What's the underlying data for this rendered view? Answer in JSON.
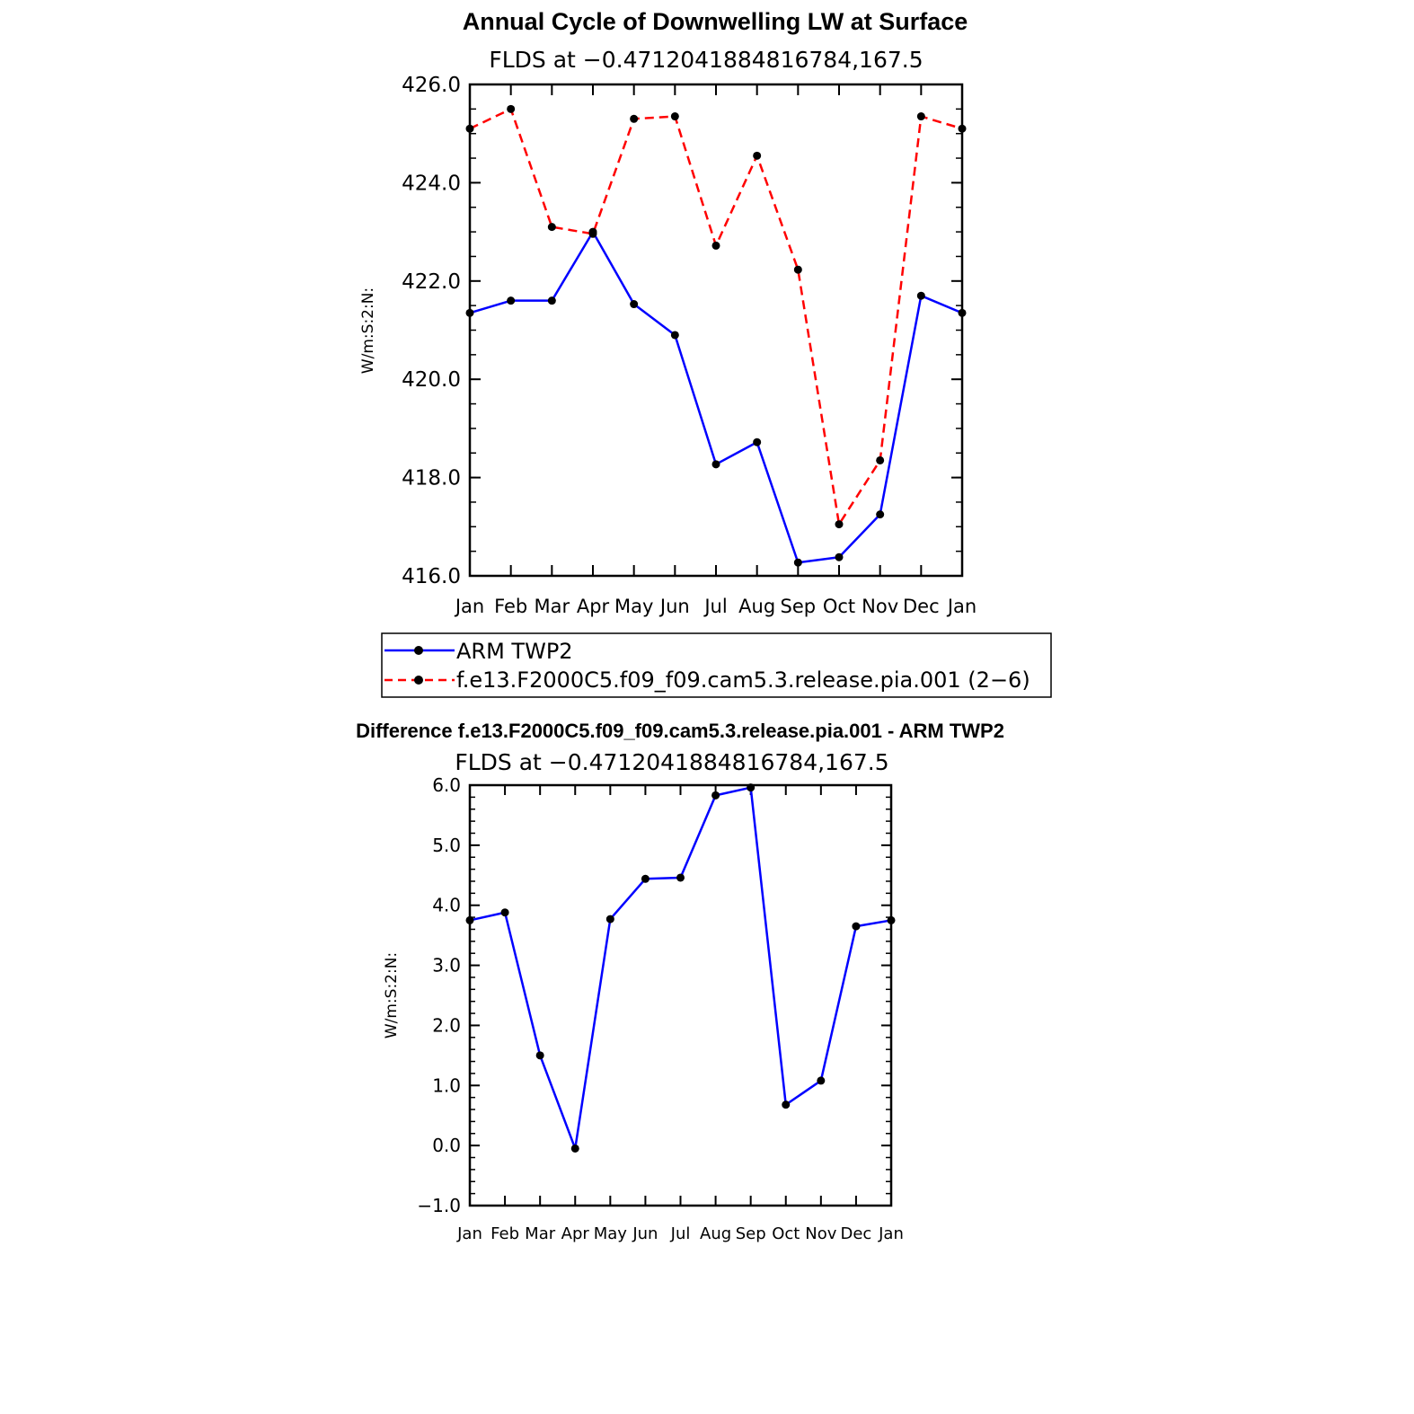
{
  "chart_data": [
    {
      "type": "line",
      "title": "Annual Cycle of Downwelling LW at Surface",
      "subtitle": "FLDS at −0.4712041884816784,167.5",
      "xlabel": "",
      "ylabel": "W/m:S:2:N:",
      "categories": [
        "Jan",
        "Feb",
        "Mar",
        "Apr",
        "May",
        "Jun",
        "Jul",
        "Aug",
        "Sep",
        "Oct",
        "Nov",
        "Dec",
        "Jan"
      ],
      "ylim": [
        416.0,
        426.0
      ],
      "yticks": [
        "416.0",
        "418.0",
        "420.0",
        "422.0",
        "424.0",
        "426.0"
      ],
      "grid": false,
      "legend_position": "bottom",
      "series": [
        {
          "name": "ARM TWP2",
          "color": "#0000ff",
          "style": "solid",
          "values": [
            421.35,
            421.6,
            421.6,
            423.0,
            421.53,
            420.9,
            418.27,
            418.72,
            416.27,
            416.38,
            417.25,
            421.7,
            421.35
          ]
        },
        {
          "name": "f.e13.F2000C5.f09_f09.cam5.3.release.pia.001 (2−6)",
          "color": "#ff0000",
          "style": "dashed",
          "values": [
            425.1,
            425.5,
            423.1,
            422.96,
            425.3,
            425.35,
            422.72,
            424.55,
            422.23,
            417.05,
            418.35,
            425.35,
            425.1
          ]
        }
      ]
    },
    {
      "type": "line",
      "title": "Difference f.e13.F2000C5.f09_f09.cam5.3.release.pia.001 - ARM TWP2",
      "subtitle": "FLDS at −0.4712041884816784,167.5",
      "xlabel": "",
      "ylabel": "W/m:S:2:N:",
      "categories": [
        "Jan",
        "Feb",
        "Mar",
        "Apr",
        "May",
        "Jun",
        "Jul",
        "Aug",
        "Sep",
        "Oct",
        "Nov",
        "Dec",
        "Jan"
      ],
      "ylim": [
        -1.0,
        6.0
      ],
      "yticks": [
        "−1.0",
        "0.0",
        "1.0",
        "2.0",
        "3.0",
        "4.0",
        "5.0",
        "6.0"
      ],
      "grid": false,
      "series": [
        {
          "color": "#0000ff",
          "style": "solid",
          "values": [
            3.75,
            3.88,
            1.5,
            -0.05,
            3.77,
            4.44,
            4.46,
            5.83,
            5.96,
            0.68,
            1.08,
            3.65,
            3.75
          ]
        }
      ]
    }
  ]
}
